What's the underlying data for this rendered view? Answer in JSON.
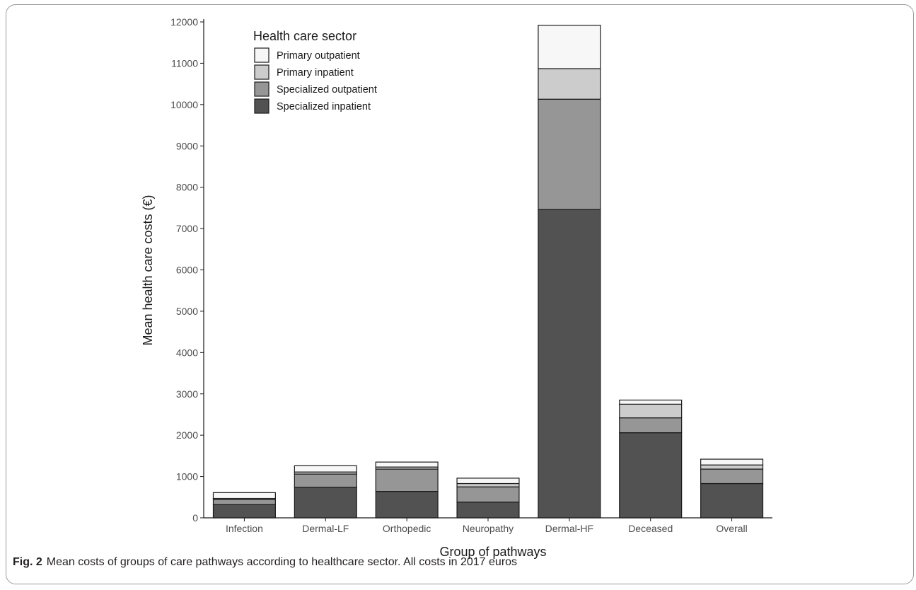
{
  "figure": {
    "label": "Fig. 2",
    "caption": "Mean costs of groups of care pathways according to healthcare sector. All costs in 2017 euros"
  },
  "colors": {
    "Primary outpatient": "#f7f7f7",
    "Primary inpatient": "#cccccc",
    "Specialized outpatient": "#969696",
    "Specialized inpatient": "#525252"
  },
  "chart_data": {
    "type": "bar",
    "stacked": true,
    "title": "",
    "xlabel": "Group of pathways",
    "ylabel": "Mean health care costs (€)",
    "ylim": [
      0,
      12000
    ],
    "yticks": [
      0,
      1000,
      2000,
      3000,
      4000,
      5000,
      6000,
      7000,
      8000,
      9000,
      10000,
      11000,
      12000
    ],
    "grid": false,
    "legend": {
      "title": "Health care sector",
      "position": "top-left"
    },
    "categories": [
      "Infection",
      "Dermal-LF",
      "Orthopedic",
      "Neuropathy",
      "Dermal-HF",
      "Deceased",
      "Overall"
    ],
    "series": [
      {
        "name": "Specialized inpatient",
        "values": [
          320,
          740,
          640,
          380,
          7460,
          2060,
          830
        ]
      },
      {
        "name": "Specialized outpatient",
        "values": [
          120,
          320,
          540,
          370,
          2670,
          360,
          350
        ]
      },
      {
        "name": "Primary inpatient",
        "values": [
          30,
          50,
          50,
          80,
          740,
          330,
          100
        ]
      },
      {
        "name": "Primary outpatient",
        "values": [
          140,
          150,
          120,
          130,
          1050,
          100,
          140
        ]
      }
    ],
    "legend_order": [
      "Primary outpatient",
      "Primary inpatient",
      "Specialized outpatient",
      "Specialized inpatient"
    ]
  }
}
